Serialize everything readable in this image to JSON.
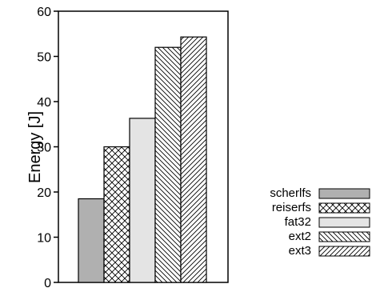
{
  "chart_data": {
    "type": "bar",
    "title": "",
    "xlabel": "",
    "ylabel": "Energy [J]",
    "ylim": [
      0,
      60
    ],
    "yticks": [
      0,
      10,
      20,
      30,
      40,
      50,
      60
    ],
    "grid": false,
    "legend_position": "bottom-right",
    "categories": [
      "scherlfs",
      "reiserfs",
      "fat32",
      "ext2",
      "ext3"
    ],
    "values": [
      18.5,
      30,
      36.3,
      52,
      54.3
    ],
    "series": [
      {
        "name": "scherlfs",
        "value": 18.5,
        "fill": "#b0b0b0",
        "pattern": "solid"
      },
      {
        "name": "reiserfs",
        "value": 30,
        "fill": "#ffffff",
        "pattern": "crosshatch"
      },
      {
        "name": "fat32",
        "value": 36.3,
        "fill": "#e4e4e4",
        "pattern": "solid"
      },
      {
        "name": "ext2",
        "value": 52,
        "fill": "#ffffff",
        "pattern": "backslash"
      },
      {
        "name": "ext3",
        "value": 54.3,
        "fill": "#ffffff",
        "pattern": "slash"
      }
    ]
  }
}
